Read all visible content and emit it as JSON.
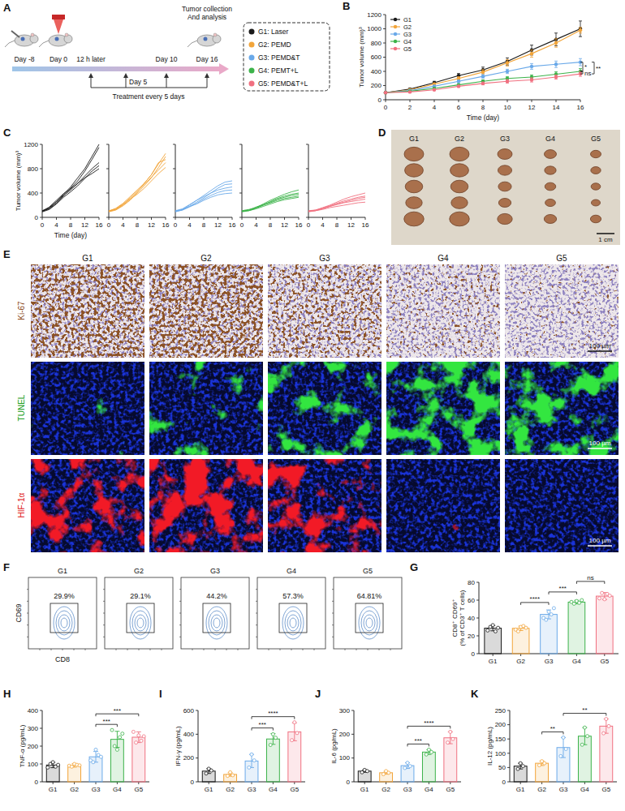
{
  "panel_a": {
    "letter": "A",
    "timeline_labels": [
      "Day -8",
      "Day 0",
      "12 h later",
      "Day 5",
      "Day 10",
      "Day 16"
    ],
    "treatment": "Treatment every 5 days",
    "endpoint": "Tumor collection And analysis",
    "groups": [
      {
        "label": "G1: Laser",
        "color": "#1a1a1a"
      },
      {
        "label": "G2: PEMD",
        "color": "#f2a53a"
      },
      {
        "label": "G3: PEMD&T",
        "color": "#6aa9e9"
      },
      {
        "label": "G4: PEMT+L",
        "color": "#3cb34a"
      },
      {
        "label": "G5: PEMD&T+L",
        "color": "#f07080"
      }
    ]
  },
  "chart_data": [
    {
      "type": "line",
      "panel_label": "B",
      "x": [
        0,
        2,
        4,
        6,
        8,
        10,
        12,
        14,
        16
      ],
      "xlim": [
        0,
        16
      ],
      "xticks": [
        0,
        2,
        4,
        6,
        8,
        10,
        12,
        14,
        16
      ],
      "ylim": [
        0,
        1200
      ],
      "yticks": [
        0,
        200,
        400,
        600,
        800,
        1000,
        1200
      ],
      "x_label": "Time (day)",
      "y_label": "Tumor volume (mm)³",
      "legend": "top-left",
      "series": [
        {
          "name": "G1",
          "color": "#1a1a1a",
          "marker": "circle",
          "values": [
            100,
            150,
            240,
            340,
            420,
            540,
            700,
            850,
            1000
          ],
          "errors": [
            5,
            10,
            20,
            30,
            40,
            50,
            70,
            90,
            110
          ]
        },
        {
          "name": "G2",
          "color": "#f2a53a",
          "marker": "circle",
          "values": [
            100,
            140,
            220,
            300,
            390,
            520,
            650,
            800,
            980
          ],
          "errors": [
            5,
            10,
            15,
            25,
            35,
            45,
            50,
            60,
            40
          ]
        },
        {
          "name": "G3",
          "color": "#6aa9e9",
          "marker": "circle",
          "values": [
            100,
            130,
            190,
            260,
            330,
            400,
            470,
            500,
            530
          ],
          "errors": [
            5,
            10,
            15,
            20,
            25,
            30,
            40,
            45,
            50
          ]
        },
        {
          "name": "G4",
          "color": "#3cb34a",
          "marker": "circle",
          "values": [
            100,
            120,
            160,
            210,
            260,
            300,
            320,
            360,
            400
          ],
          "errors": [
            5,
            8,
            10,
            15,
            20,
            25,
            30,
            35,
            40
          ]
        },
        {
          "name": "G5",
          "color": "#f07080",
          "marker": "circle",
          "values": [
            100,
            110,
            140,
            190,
            230,
            260,
            280,
            320,
            365
          ],
          "errors": [
            5,
            8,
            10,
            15,
            20,
            25,
            30,
            30,
            35
          ]
        }
      ],
      "annotations": [
        {
          "text": "*",
          "between": [
            "G3",
            "G4"
          ]
        },
        {
          "text": "**",
          "between": [
            "G3",
            "G5"
          ]
        },
        {
          "text": "ns",
          "between": [
            "G4",
            "G5"
          ]
        }
      ]
    },
    {
      "type": "line",
      "panel_label": "C",
      "x": [
        0,
        2,
        4,
        6,
        8,
        10,
        12,
        14,
        16
      ],
      "xlim": [
        0,
        16
      ],
      "xticks": [
        0,
        4,
        8,
        12,
        16
      ],
      "ylim": [
        0,
        1200
      ],
      "yticks": [
        0,
        400,
        800,
        1200
      ],
      "x_label": "Time (day)",
      "y_label": "Tumor volume (mm)³",
      "color": "#1a1a1a",
      "series": [
        {
          "values": [
            100,
            150,
            250,
            380,
            500,
            650,
            800,
            1000,
            1200
          ]
        },
        {
          "values": [
            100,
            140,
            230,
            350,
            480,
            600,
            760,
            950,
            1150
          ]
        },
        {
          "values": [
            110,
            160,
            260,
            360,
            450,
            560,
            680,
            800,
            900
          ]
        },
        {
          "values": [
            90,
            130,
            220,
            330,
            420,
            520,
            640,
            760,
            850
          ]
        },
        {
          "values": [
            100,
            170,
            280,
            390,
            470,
            560,
            650,
            720,
            800
          ]
        }
      ]
    },
    {
      "type": "line",
      "x": [
        0,
        2,
        4,
        6,
        8,
        10,
        12,
        14,
        16
      ],
      "xlim": [
        0,
        16
      ],
      "xticks": [
        0,
        4,
        8,
        12,
        16
      ],
      "ylim": [
        0,
        1200
      ],
      "yticks": [
        0,
        400,
        800,
        1200
      ],
      "tick_labels": "x",
      "color": "#f2a53a",
      "series": [
        {
          "values": [
            100,
            130,
            200,
            300,
            420,
            560,
            700,
            880,
            1050
          ]
        },
        {
          "values": [
            90,
            120,
            190,
            280,
            400,
            520,
            650,
            820,
            1000
          ]
        },
        {
          "values": [
            110,
            140,
            220,
            320,
            430,
            540,
            660,
            780,
            900
          ]
        },
        {
          "values": [
            100,
            130,
            210,
            300,
            380,
            480,
            600,
            720,
            820
          ]
        },
        {
          "values": [
            100,
            150,
            230,
            340,
            450,
            560,
            700,
            900,
            950
          ]
        }
      ]
    },
    {
      "type": "line",
      "x": [
        0,
        2,
        4,
        6,
        8,
        10,
        12,
        14,
        16
      ],
      "xlim": [
        0,
        16
      ],
      "xticks": [
        0,
        4,
        8,
        12,
        16
      ],
      "ylim": [
        0,
        1200
      ],
      "yticks": [
        0,
        400,
        800,
        1200
      ],
      "tick_labels": "x",
      "color": "#6aa9e9",
      "series": [
        {
          "values": [
            100,
            130,
            200,
            280,
            360,
            440,
            520,
            580,
            600
          ]
        },
        {
          "values": [
            90,
            120,
            180,
            250,
            320,
            400,
            480,
            540,
            550
          ]
        },
        {
          "values": [
            110,
            140,
            210,
            280,
            340,
            400,
            450,
            480,
            500
          ]
        },
        {
          "values": [
            100,
            120,
            170,
            230,
            300,
            360,
            410,
            440,
            450
          ]
        },
        {
          "values": [
            100,
            130,
            180,
            220,
            280,
            330,
            370,
            390,
            400
          ]
        }
      ]
    },
    {
      "type": "line",
      "x": [
        0,
        2,
        4,
        6,
        8,
        10,
        12,
        14,
        16
      ],
      "xlim": [
        0,
        16
      ],
      "xticks": [
        0,
        4,
        8,
        12,
        16
      ],
      "ylim": [
        0,
        1200
      ],
      "yticks": [
        0,
        400,
        800,
        1200
      ],
      "tick_labels": "x",
      "color": "#3cb34a",
      "series": [
        {
          "values": [
            100,
            120,
            160,
            220,
            280,
            330,
            380,
            420,
            450
          ]
        },
        {
          "values": [
            90,
            110,
            150,
            200,
            260,
            310,
            350,
            380,
            400
          ]
        },
        {
          "values": [
            100,
            120,
            170,
            210,
            250,
            300,
            330,
            360,
            380
          ]
        },
        {
          "values": [
            110,
            130,
            160,
            200,
            240,
            280,
            310,
            330,
            350
          ]
        },
        {
          "values": [
            100,
            110,
            140,
            180,
            220,
            260,
            290,
            310,
            330
          ]
        }
      ]
    },
    {
      "type": "line",
      "x": [
        0,
        2,
        4,
        6,
        8,
        10,
        12,
        14,
        16
      ],
      "xlim": [
        0,
        16
      ],
      "xticks": [
        0,
        4,
        8,
        12,
        16
      ],
      "ylim": [
        0,
        1200
      ],
      "yticks": [
        0,
        400,
        800,
        1200
      ],
      "tick_labels": "x",
      "color": "#f07080",
      "series": [
        {
          "values": [
            100,
            120,
            160,
            200,
            250,
            300,
            340,
            370,
            400
          ]
        },
        {
          "values": [
            90,
            110,
            150,
            190,
            230,
            270,
            300,
            330,
            350
          ]
        },
        {
          "values": [
            100,
            110,
            140,
            180,
            220,
            250,
            280,
            310,
            330
          ]
        },
        {
          "values": [
            110,
            120,
            150,
            180,
            210,
            240,
            260,
            280,
            300
          ]
        },
        {
          "values": [
            100,
            110,
            130,
            160,
            180,
            200,
            220,
            240,
            250
          ]
        }
      ]
    },
    {
      "type": "bar",
      "panel_label": "G",
      "categories": [
        "G1",
        "G2",
        "G3",
        "G4",
        "G5"
      ],
      "colors": [
        "#1a1a1a",
        "#f2a53a",
        "#6aa9e9",
        "#3cb34a",
        "#f07080"
      ],
      "values": [
        28.6,
        28.4,
        44,
        57.8,
        64.5
      ],
      "errors": [
        3,
        2.5,
        5,
        2,
        4
      ],
      "points": [
        [
          26,
          30,
          32,
          25,
          29
        ],
        [
          27,
          25,
          30,
          31,
          29
        ],
        [
          40,
          38,
          47,
          44,
          51
        ],
        [
          58,
          56,
          59,
          57,
          60
        ],
        [
          62,
          68,
          61,
          67,
          65
        ]
      ],
      "ylim": [
        0,
        80
      ],
      "yticks": [
        0,
        20,
        40,
        60,
        80
      ],
      "y_label": "CD8⁺ CD69⁺ (% of CD3⁺ T cells)",
      "annotations": [
        {
          "text": "****",
          "between": [
            "G2",
            "G3"
          ]
        },
        {
          "text": "***",
          "between": [
            "G3",
            "G4"
          ]
        },
        {
          "text": "ns",
          "between": [
            "G4",
            "G5"
          ]
        }
      ]
    },
    {
      "type": "bar",
      "panel_label": "H",
      "categories": [
        "G1",
        "G2",
        "G3",
        "G4",
        "G5"
      ],
      "colors": [
        "#1a1a1a",
        "#f2a53a",
        "#6aa9e9",
        "#3cb34a",
        "#f07080"
      ],
      "values": [
        94,
        92,
        140,
        238,
        250
      ],
      "errors": [
        15,
        10,
        30,
        45,
        30
      ],
      "points": [
        [
          80,
          100,
          110,
          85,
          95
        ],
        [
          90,
          85,
          100,
          95,
          92
        ],
        [
          120,
          110,
          180,
          150,
          140
        ],
        [
          290,
          200,
          180,
          250,
          270
        ],
        [
          280,
          220,
          260,
          230,
          255
        ]
      ],
      "ylim": [
        0,
        400
      ],
      "yticks": [
        0,
        100,
        200,
        300,
        400
      ],
      "y_label": "TNF-α (pg/mL)",
      "annotations": [
        {
          "text": "***",
          "between": [
            "G3",
            "G4"
          ]
        },
        {
          "text": "***",
          "between": [
            "G3",
            "G5"
          ]
        }
      ]
    },
    {
      "type": "bar",
      "panel_label": "I",
      "categories": [
        "G1",
        "G2",
        "G3",
        "G4",
        "G5"
      ],
      "colors": [
        "#1a1a1a",
        "#f2a53a",
        "#6aa9e9",
        "#3cb34a",
        "#f07080"
      ],
      "values": [
        90,
        62,
        175,
        360,
        420
      ],
      "errors": [
        20,
        15,
        55,
        45,
        75
      ],
      "points": [
        [
          70,
          110,
          95
        ],
        [
          50,
          80,
          55
        ],
        [
          120,
          230,
          180
        ],
        [
          310,
          400,
          370
        ],
        [
          350,
          500,
          410
        ]
      ],
      "ylim": [
        0,
        600
      ],
      "yticks": [
        0,
        200,
        400,
        600
      ],
      "y_label": "IFN-γ (pg/mL)",
      "annotations": [
        {
          "text": "***",
          "between": [
            "G3",
            "G4"
          ]
        },
        {
          "text": "****",
          "between": [
            "G3",
            "G5"
          ]
        }
      ]
    },
    {
      "type": "bar",
      "panel_label": "J",
      "categories": [
        "G1",
        "G2",
        "G3",
        "G4",
        "G5"
      ],
      "colors": [
        "#1a1a1a",
        "#f2a53a",
        "#6aa9e9",
        "#3cb34a",
        "#f07080"
      ],
      "values": [
        45,
        38,
        68,
        125,
        185
      ],
      "errors": [
        5,
        6,
        12,
        10,
        25
      ],
      "points": [
        [
          40,
          50,
          45
        ],
        [
          32,
          45,
          38
        ],
        [
          58,
          80,
          66
        ],
        [
          115,
          135,
          125
        ],
        [
          165,
          210,
          180
        ]
      ],
      "ylim": [
        0,
        300
      ],
      "yticks": [
        0,
        100,
        200,
        300
      ],
      "y_label": "IL-6 (pg/mL)",
      "annotations": [
        {
          "text": "***",
          "between": [
            "G3",
            "G4"
          ]
        },
        {
          "text": "****",
          "between": [
            "G3",
            "G5"
          ]
        }
      ]
    },
    {
      "type": "bar",
      "panel_label": "K",
      "categories": [
        "G1",
        "G2",
        "G3",
        "G4",
        "G5"
      ],
      "colors": [
        "#1a1a1a",
        "#f2a53a",
        "#6aa9e9",
        "#3cb34a",
        "#f07080"
      ],
      "values": [
        55,
        65,
        120,
        160,
        195
      ],
      "errors": [
        10,
        8,
        35,
        30,
        25
      ],
      "points": [
        [
          45,
          65,
          55
        ],
        [
          58,
          72,
          65
        ],
        [
          90,
          155,
          115
        ],
        [
          130,
          190,
          160
        ],
        [
          170,
          220,
          195
        ]
      ],
      "ylim": [
        0,
        250
      ],
      "yticks": [
        0,
        50,
        100,
        150,
        200,
        250
      ],
      "y_label": "IL-12 (pg/mL)",
      "annotations": [
        {
          "text": "**",
          "between": [
            "G2",
            "G3"
          ]
        },
        {
          "text": "**",
          "between": [
            "G3",
            "G5"
          ]
        }
      ]
    }
  ],
  "panel_d": {
    "letter": "D",
    "groups": [
      "G1",
      "G2",
      "G3",
      "G4",
      "G5"
    ],
    "scale_bar": "1 cm"
  },
  "panel_e": {
    "letter": "E",
    "groups": [
      "G1",
      "G2",
      "G3",
      "G4",
      "G5"
    ],
    "stains": [
      {
        "label": "Ki-67",
        "color": "#8b4a1c"
      },
      {
        "label": "TUNEL",
        "color": "#22a022"
      },
      {
        "label": "HIF-1α",
        "color": "#e02020"
      }
    ],
    "scale_bar": "100 µm"
  },
  "panel_f": {
    "letter": "F",
    "groups": [
      "G1",
      "G2",
      "G3",
      "G4",
      "G5"
    ],
    "gates": [
      "29.9%",
      "29.1%",
      "44.2%",
      "57.3%",
      "64.81%"
    ],
    "y_label": "CD69",
    "x_label": "CD8"
  }
}
